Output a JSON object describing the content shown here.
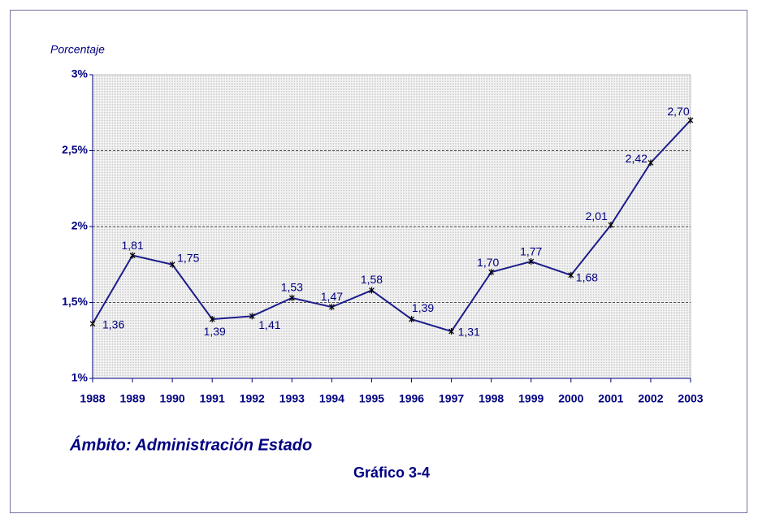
{
  "chart_data": {
    "type": "line",
    "y_label": "Porcentaje",
    "subtitle": "Ámbito: Administración Estado",
    "caption": "Gráfico 3-4",
    "x": [
      1988,
      1989,
      1990,
      1991,
      1992,
      1993,
      1994,
      1995,
      1996,
      1997,
      1998,
      1999,
      2000,
      2001,
      2002,
      2003
    ],
    "xlim": [
      1988,
      2003
    ],
    "xticks": [
      1988,
      1989,
      1990,
      1991,
      1992,
      1993,
      1994,
      1995,
      1996,
      1997,
      1998,
      1999,
      2000,
      2001,
      2002,
      2003
    ],
    "series": [
      {
        "color": "#1c1c8c",
        "values": [
          1.36,
          1.81,
          1.75,
          1.39,
          1.41,
          1.53,
          1.47,
          1.58,
          1.39,
          1.31,
          1.7,
          1.77,
          1.68,
          2.01,
          2.42,
          2.7
        ],
        "value_labels": [
          "1,36",
          "1,81",
          "1,75",
          "1,39",
          "1,41",
          "1,53",
          "1,47",
          "1,58",
          "1,39",
          "1,31",
          "1,70",
          "1,77",
          "1,68",
          "2,01",
          "2,42",
          "2,70"
        ]
      }
    ],
    "ylim": [
      1,
      3
    ],
    "yticks": [
      {
        "value": 1,
        "label": "1%"
      },
      {
        "value": 1.5,
        "label": "1,5%"
      },
      {
        "value": 2,
        "label": "2%"
      },
      {
        "value": 2.5,
        "label": "2,5%"
      },
      {
        "value": 3,
        "label": "3%"
      }
    ],
    "grid": true
  }
}
